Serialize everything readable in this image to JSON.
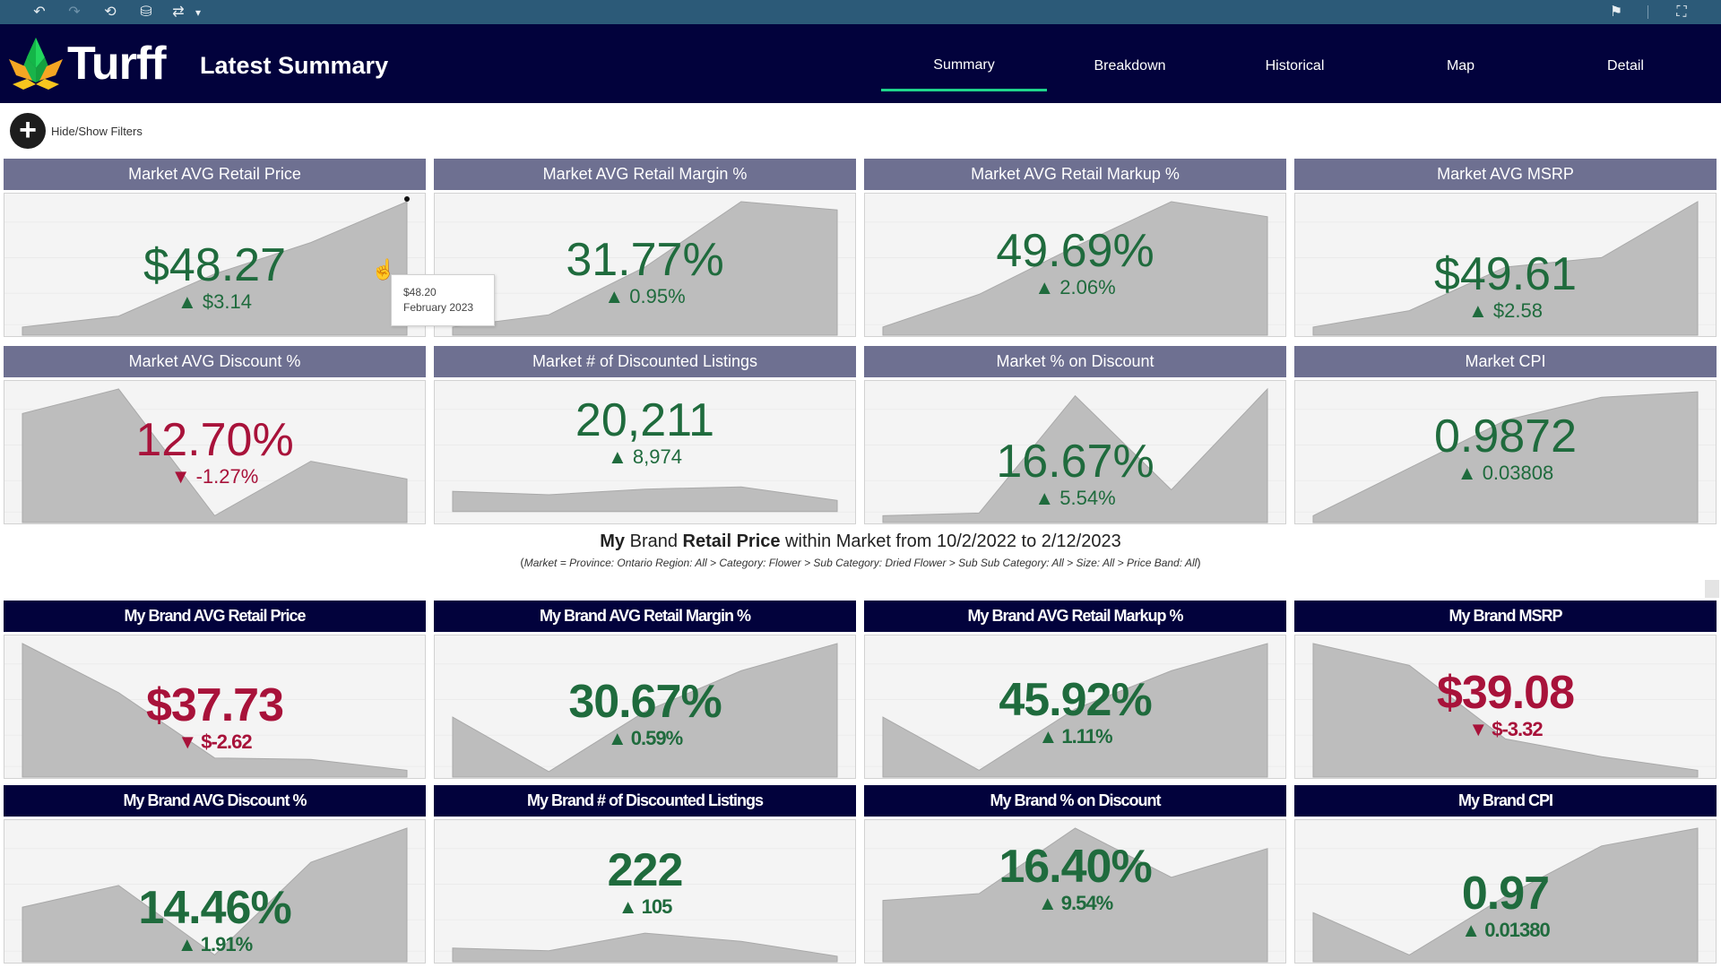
{
  "toolbar": {
    "undo_icon": "↶",
    "redo_icon": "↷",
    "revert_icon": "⟲",
    "datasource_icon": "⛁",
    "pause_icon": "⇄",
    "dropdown_icon": "▾",
    "share_icon": "⚑",
    "fullscreen_icon": "⛶"
  },
  "header": {
    "brand": "Turff",
    "title": "Latest Summary",
    "nav": [
      {
        "label": "Summary",
        "active": true
      },
      {
        "label": "Breakdown",
        "active": false
      },
      {
        "label": "Historical",
        "active": false
      },
      {
        "label": "Map",
        "active": false
      },
      {
        "label": "Detail",
        "active": false
      }
    ]
  },
  "filters": {
    "icon": "+",
    "label": "Hide/Show Filters"
  },
  "colors": {
    "toolbar": "#2c5a78",
    "header": "#02023c",
    "market_header": "#6e7091",
    "brand_header": "#02023c",
    "accent": "#1fd48c",
    "positive": "#1f6b3d",
    "negative": "#a8123a",
    "sparkline": "#bdbdbd"
  },
  "market_cards": [
    {
      "title": "Market AVG Retail Price",
      "value": "$48.27",
      "arrow": "▲",
      "delta": "$3.14",
      "dir": "up"
    },
    {
      "title": "Market AVG Retail Margin %",
      "value": "31.77%",
      "arrow": "▲",
      "delta": "0.95%",
      "dir": "up"
    },
    {
      "title": "Market AVG Retail Markup %",
      "value": "49.69%",
      "arrow": "▲",
      "delta": "2.06%",
      "dir": "up"
    },
    {
      "title": "Market AVG MSRP",
      "value": "$49.61",
      "arrow": "▲",
      "delta": "$2.58",
      "dir": "up"
    },
    {
      "title": "Market AVG Discount %",
      "value": "12.70%",
      "arrow": "▼",
      "delta": "-1.27%",
      "dir": "down"
    },
    {
      "title": "Market # of Discounted Listings",
      "value": "20,211",
      "arrow": "▲",
      "delta": "8,974",
      "dir": "up"
    },
    {
      "title": "Market % on Discount",
      "value": "16.67%",
      "arrow": "▲",
      "delta": "5.54%",
      "dir": "up"
    },
    {
      "title": "Market CPI",
      "value": "0.9872",
      "arrow": "▲",
      "delta": "0.03808",
      "dir": "up"
    }
  ],
  "middle": {
    "title_bold1": "My",
    "title_text1": " Brand ",
    "title_bold2": "Retail Price",
    "title_text2": " within Market from 10/2/2022 to 2/12/2023",
    "subtitle": "Market = Province: Ontario Region: All > Category: Flower > Sub Category: Dried Flower > Sub Sub Category: All > Size: All > Price Band: All"
  },
  "brand_cards": [
    {
      "title": "My Brand AVG Retail Price",
      "value": "$37.73",
      "arrow": "▼",
      "delta": "$-2.62",
      "dir": "down"
    },
    {
      "title": "My Brand AVG Retail Margin %",
      "value": "30.67%",
      "arrow": "▲",
      "delta": "0.59%",
      "dir": "up"
    },
    {
      "title": "My Brand AVG Retail Markup %",
      "value": "45.92%",
      "arrow": "▲",
      "delta": "1.11%",
      "dir": "up"
    },
    {
      "title": "My Brand MSRP",
      "value": "$39.08",
      "arrow": "▼",
      "delta": "$-3.32",
      "dir": "down"
    },
    {
      "title": "My Brand AVG Discount %",
      "value": "14.46%",
      "arrow": "▲",
      "delta": "1.91%",
      "dir": "up"
    },
    {
      "title": "My Brand # of Discounted Listings",
      "value": "222",
      "arrow": "▲",
      "delta": "105",
      "dir": "up"
    },
    {
      "title": "My Brand % on Discount",
      "value": "16.40%",
      "arrow": "▲",
      "delta": "9.54%",
      "dir": "up"
    },
    {
      "title": "My Brand CPI",
      "value": "0.97",
      "arrow": "▲",
      "delta": "0.01380",
      "dir": "up"
    }
  ],
  "tooltip": {
    "value": "$48.20",
    "label": "February 2023"
  },
  "chart_data": {
    "type": "area",
    "note": "Sparkline shapes, normalized 0-1 (relative height within each card), 5 periods each",
    "series": [
      {
        "name": "Market AVG Retail Price",
        "values": [
          0.06,
          0.14,
          0.45,
          0.68,
          0.98
        ]
      },
      {
        "name": "Market AVG Retail Margin %",
        "values": [
          0.06,
          0.15,
          0.5,
          0.98,
          0.92
        ]
      },
      {
        "name": "Market AVG Retail Markup %",
        "values": [
          0.06,
          0.3,
          0.65,
          0.98,
          0.87
        ]
      },
      {
        "name": "Market AVG MSRP",
        "values": [
          0.06,
          0.18,
          0.5,
          0.57,
          0.98
        ]
      },
      {
        "name": "Market AVG Discount %",
        "values": [
          0.8,
          0.98,
          0.05,
          0.45,
          0.32
        ]
      },
      {
        "name": "Market # of Discounted Listings",
        "values": [
          0.18,
          0.15,
          0.2,
          0.22,
          0.1
        ],
        "baseline": 0.08
      },
      {
        "name": "Market % on Discount",
        "values": [
          0.05,
          0.07,
          0.93,
          0.24,
          0.98
        ]
      },
      {
        "name": "Market CPI",
        "values": [
          0.05,
          0.4,
          0.75,
          0.92,
          0.96
        ]
      },
      {
        "name": "My Brand AVG Retail Price",
        "values": [
          0.98,
          0.62,
          0.14,
          0.13,
          0.05
        ]
      },
      {
        "name": "My Brand AVG Retail Margin %",
        "values": [
          0.44,
          0.04,
          0.48,
          0.78,
          0.98
        ]
      },
      {
        "name": "My Brand AVG Retail Markup %",
        "values": [
          0.44,
          0.05,
          0.5,
          0.78,
          0.98
        ]
      },
      {
        "name": "My Brand MSRP",
        "values": [
          0.98,
          0.82,
          0.28,
          0.15,
          0.05
        ]
      },
      {
        "name": "My Brand AVG Discount %",
        "values": [
          0.4,
          0.56,
          0.05,
          0.73,
          0.98
        ]
      },
      {
        "name": "My Brand # of Discounted Listings",
        "values": [
          0.1,
          0.08,
          0.21,
          0.15,
          0.04
        ]
      },
      {
        "name": "My Brand % on Discount",
        "values": [
          0.45,
          0.5,
          0.98,
          0.62,
          0.83
        ]
      },
      {
        "name": "My Brand CPI",
        "values": [
          0.36,
          0.05,
          0.48,
          0.85,
          0.98
        ]
      }
    ]
  }
}
